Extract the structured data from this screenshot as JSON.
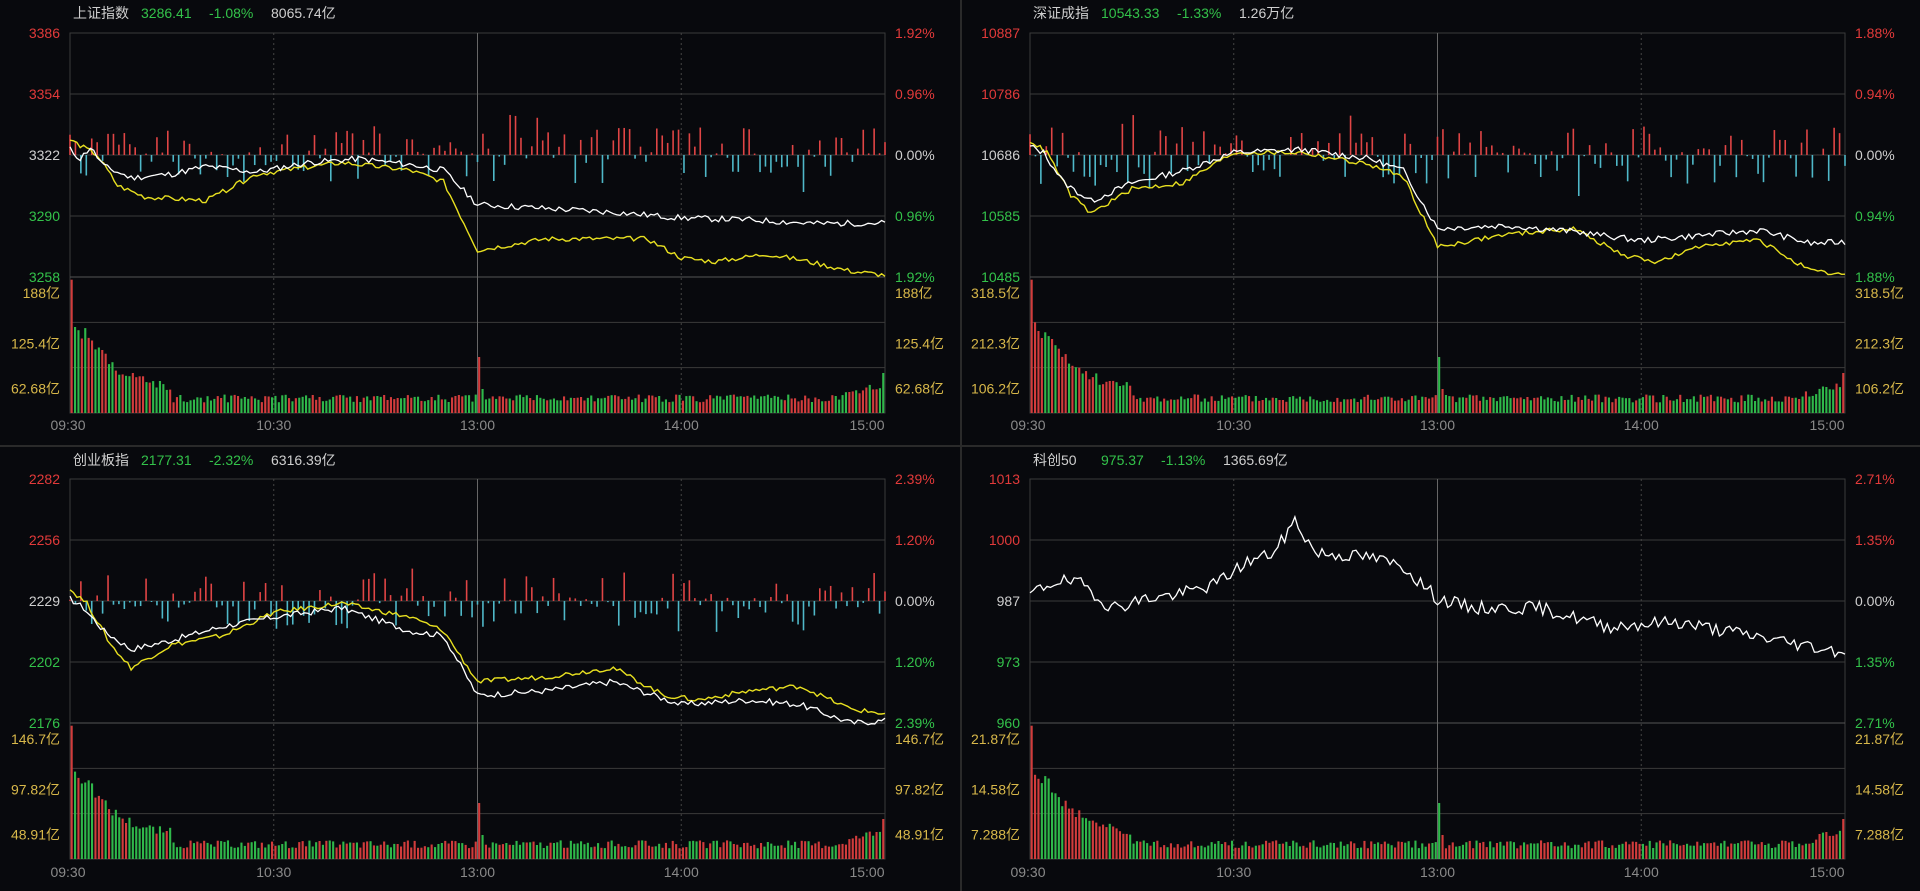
{
  "colors": {
    "background": "#08090d",
    "grid": "#3a3a3a",
    "up": "#e23a3a",
    "down": "#33c24a",
    "neutral": "#cfcfcf",
    "volume_label": "#d8b84a",
    "price_line": "#ffffff",
    "avg_line": "#e8e020",
    "bar_pos": "#e04545",
    "bar_neg": "#4fb8c8",
    "vol_up": "#d23c3c",
    "vol_down": "#2fb84a"
  },
  "chart_data": [
    {
      "type": "line",
      "name": "上证指数",
      "price": "3286.41",
      "change": "-1.08%",
      "turnover": "8065.74亿",
      "has_avg": true,
      "price_ticks": [
        "3386",
        "3354",
        "3322",
        "3290",
        "3258"
      ],
      "pct_ticks": [
        "1.92%",
        "0.96%",
        "0.00%",
        "0.96%",
        "1.92%"
      ],
      "vol_ticks": [
        "188亿",
        "125.4亿",
        "62.68亿"
      ],
      "time_ticks": [
        "09:30",
        "10:30",
        "13:00",
        "14:00",
        "15:00"
      ],
      "ylim": [
        3258,
        3386
      ],
      "line_seed": 11,
      "price_path": [
        [
          0,
          3325
        ],
        [
          3,
          3320
        ],
        [
          6,
          3326
        ],
        [
          10,
          3316
        ],
        [
          18,
          3310
        ],
        [
          30,
          3312
        ],
        [
          40,
          3316
        ],
        [
          55,
          3313
        ],
        [
          70,
          3318
        ],
        [
          85,
          3320
        ],
        [
          100,
          3317
        ],
        [
          110,
          3314
        ],
        [
          120,
          3296
        ],
        [
          140,
          3294
        ],
        [
          160,
          3292
        ],
        [
          180,
          3289
        ],
        [
          200,
          3288
        ],
        [
          220,
          3286
        ],
        [
          240,
          3286.4
        ]
      ],
      "avg_path": [
        [
          0,
          3330
        ],
        [
          4,
          3326
        ],
        [
          8,
          3322
        ],
        [
          14,
          3306
        ],
        [
          22,
          3300
        ],
        [
          40,
          3298
        ],
        [
          55,
          3312
        ],
        [
          80,
          3318
        ],
        [
          100,
          3314
        ],
        [
          110,
          3308
        ],
        [
          120,
          3272
        ],
        [
          140,
          3278
        ],
        [
          170,
          3278
        ],
        [
          180,
          3268
        ],
        [
          190,
          3266
        ],
        [
          205,
          3270
        ],
        [
          215,
          3267
        ],
        [
          230,
          3261
        ],
        [
          240,
          3259
        ]
      ],
      "osc_seed": 5,
      "vol_seed": 21,
      "vol_max": 188
    },
    {
      "type": "line",
      "name": "深证成指",
      "price": "10543.33",
      "change": "-1.33%",
      "turnover": "1.26万亿",
      "has_avg": true,
      "price_ticks": [
        "10887",
        "10786",
        "10686",
        "10585",
        "10485"
      ],
      "pct_ticks": [
        "1.88%",
        "0.94%",
        "0.00%",
        "0.94%",
        "1.88%"
      ],
      "vol_ticks": [
        "318.5亿",
        "212.3亿",
        "106.2亿"
      ],
      "time_ticks": [
        "09:30",
        "10:30",
        "13:00",
        "14:00",
        "15:00"
      ],
      "ylim": [
        10485,
        10887
      ],
      "line_seed": 13,
      "price_path": [
        [
          0,
          10700
        ],
        [
          4,
          10690
        ],
        [
          10,
          10640
        ],
        [
          18,
          10610
        ],
        [
          30,
          10640
        ],
        [
          45,
          10660
        ],
        [
          60,
          10690
        ],
        [
          80,
          10695
        ],
        [
          100,
          10680
        ],
        [
          110,
          10660
        ],
        [
          120,
          10565
        ],
        [
          140,
          10570
        ],
        [
          160,
          10560
        ],
        [
          180,
          10545
        ],
        [
          200,
          10555
        ],
        [
          215,
          10562
        ],
        [
          230,
          10540
        ],
        [
          240,
          10543
        ]
      ],
      "avg_path": [
        [
          0,
          10710
        ],
        [
          5,
          10690
        ],
        [
          12,
          10620
        ],
        [
          18,
          10590
        ],
        [
          30,
          10630
        ],
        [
          45,
          10640
        ],
        [
          60,
          10690
        ],
        [
          80,
          10690
        ],
        [
          100,
          10670
        ],
        [
          110,
          10650
        ],
        [
          120,
          10535
        ],
        [
          140,
          10555
        ],
        [
          160,
          10565
        ],
        [
          175,
          10520
        ],
        [
          185,
          10510
        ],
        [
          200,
          10540
        ],
        [
          215,
          10545
        ],
        [
          230,
          10494
        ],
        [
          240,
          10488
        ]
      ],
      "osc_seed": 6,
      "vol_seed": 23,
      "vol_max": 318.5
    },
    {
      "type": "line",
      "name": "创业板指",
      "price": "2177.31",
      "change": "-2.32%",
      "turnover": "6316.39亿",
      "has_avg": true,
      "price_ticks": [
        "2282",
        "2256",
        "2229",
        "2202",
        "2176"
      ],
      "pct_ticks": [
        "2.39%",
        "1.20%",
        "0.00%",
        "1.20%",
        "2.39%"
      ],
      "vol_ticks": [
        "146.7亿",
        "97.82亿",
        "48.91亿"
      ],
      "time_ticks": [
        "09:30",
        "10:30",
        "13:00",
        "14:00",
        "15:00"
      ],
      "ylim": [
        2176,
        2282
      ],
      "line_seed": 17,
      "price_path": [
        [
          0,
          2230
        ],
        [
          4,
          2226
        ],
        [
          10,
          2216
        ],
        [
          18,
          2208
        ],
        [
          30,
          2212
        ],
        [
          45,
          2218
        ],
        [
          60,
          2222
        ],
        [
          80,
          2226
        ],
        [
          100,
          2216
        ],
        [
          110,
          2214
        ],
        [
          120,
          2188
        ],
        [
          140,
          2190
        ],
        [
          160,
          2194
        ],
        [
          180,
          2184
        ],
        [
          200,
          2186
        ],
        [
          215,
          2184
        ],
        [
          230,
          2176
        ],
        [
          240,
          2177
        ]
      ],
      "avg_path": [
        [
          0,
          2234
        ],
        [
          5,
          2228
        ],
        [
          12,
          2210
        ],
        [
          18,
          2200
        ],
        [
          30,
          2210
        ],
        [
          45,
          2214
        ],
        [
          60,
          2224
        ],
        [
          80,
          2228
        ],
        [
          100,
          2222
        ],
        [
          110,
          2216
        ],
        [
          120,
          2194
        ],
        [
          140,
          2196
        ],
        [
          160,
          2200
        ],
        [
          175,
          2188
        ],
        [
          185,
          2186
        ],
        [
          200,
          2190
        ],
        [
          215,
          2192
        ],
        [
          230,
          2182
        ],
        [
          240,
          2180
        ]
      ],
      "osc_seed": 7,
      "vol_seed": 25,
      "vol_max": 146.7
    },
    {
      "type": "line",
      "name": "科创50",
      "price": "975.37",
      "change": "-1.13%",
      "turnover": "1365.69亿",
      "has_avg": false,
      "price_ticks": [
        "1013",
        "1000",
        "987",
        "973",
        "960"
      ],
      "pct_ticks": [
        "2.71%",
        "1.35%",
        "0.00%",
        "1.35%",
        "2.71%"
      ],
      "vol_ticks": [
        "21.87亿",
        "14.58亿",
        "7.288亿"
      ],
      "time_ticks": [
        "09:30",
        "10:30",
        "13:00",
        "14:00",
        "15:00"
      ],
      "ylim": [
        960,
        1013
      ],
      "line_seed": 19,
      "price_path": [
        [
          0,
          988
        ],
        [
          8,
          991
        ],
        [
          16,
          990
        ],
        [
          24,
          985
        ],
        [
          34,
          987
        ],
        [
          44,
          988
        ],
        [
          54,
          990
        ],
        [
          64,
          995
        ],
        [
          72,
          997
        ],
        [
          78,
          1004
        ],
        [
          84,
          997
        ],
        [
          100,
          996
        ],
        [
          110,
          994
        ],
        [
          120,
          987
        ],
        [
          130,
          985
        ],
        [
          150,
          985
        ],
        [
          170,
          981
        ],
        [
          190,
          982
        ],
        [
          205,
          980
        ],
        [
          220,
          978
        ],
        [
          235,
          976
        ],
        [
          240,
          975.4
        ]
      ],
      "avg_path": [],
      "osc_seed": 0,
      "vol_seed": 27,
      "vol_max": 21.87
    }
  ]
}
